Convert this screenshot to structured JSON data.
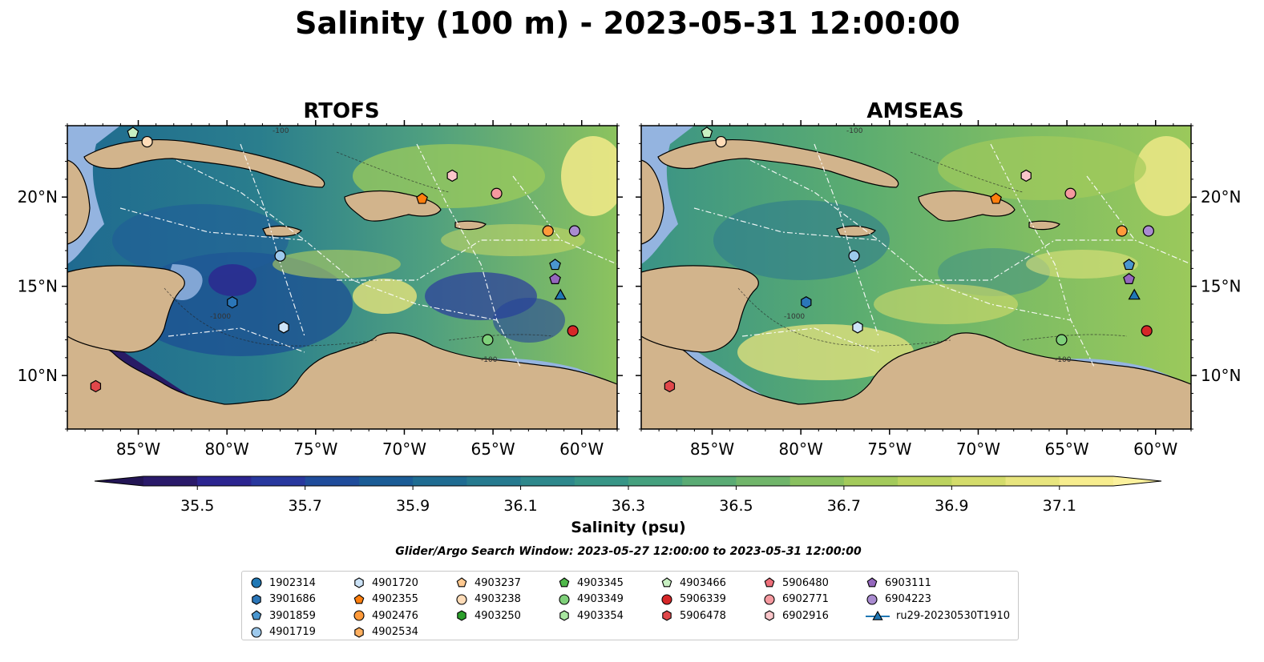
{
  "figure": {
    "title": "Salinity (100 m) - 2023-05-31 12:00:00",
    "subtitle": "Glider/Argo Search Window: 2023-05-27 12:00:00 to 2023-05-31 12:00:00"
  },
  "chart_data": [
    {
      "type": "heatmap",
      "title": "RTOFS",
      "x_ticks": [
        "85°W",
        "80°W",
        "75°W",
        "70°W",
        "65°W",
        "60°W"
      ],
      "x_tick_values": [
        -85,
        -80,
        -75,
        -70,
        -65,
        -60
      ],
      "y_ticks": [
        "10°N",
        "15°N",
        "20°N"
      ],
      "y_tick_values": [
        10,
        15,
        20
      ],
      "xlim": [
        -89,
        -58
      ],
      "ylim": [
        7,
        24
      ],
      "contour_labels": [
        "-100",
        "-1000"
      ],
      "tone": "fresher (more blue)",
      "markers": [
        {
          "id": "4903466",
          "lon": -85.3,
          "lat": 23.6
        },
        {
          "id": "4903238",
          "lon": -84.5,
          "lat": 23.1
        },
        {
          "id": "6902916",
          "lon": -67.3,
          "lat": 21.2
        },
        {
          "id": "6902771",
          "lon": -64.8,
          "lat": 20.2
        },
        {
          "id": "4902355",
          "lon": -69.0,
          "lat": 19.9
        },
        {
          "id": "4902476",
          "lon": -61.9,
          "lat": 18.1
        },
        {
          "id": "6904223",
          "lon": -60.4,
          "lat": 18.1
        },
        {
          "id": "4901719",
          "lon": -77.0,
          "lat": 16.7
        },
        {
          "id": "3901859",
          "lon": -61.5,
          "lat": 16.2
        },
        {
          "id": "6903111",
          "lon": -61.5,
          "lat": 15.4
        },
        {
          "id": "ru29-20230530T1910",
          "lon": -61.2,
          "lat": 14.5
        },
        {
          "id": "3901686",
          "lon": -79.7,
          "lat": 14.1
        },
        {
          "id": "4901720",
          "lon": -76.8,
          "lat": 12.7
        },
        {
          "id": "5906339",
          "lon": -60.5,
          "lat": 12.5
        },
        {
          "id": "4903349",
          "lon": -65.3,
          "lat": 12.0
        },
        {
          "id": "5906478",
          "lon": -87.4,
          "lat": 9.4
        }
      ]
    },
    {
      "type": "heatmap",
      "title": "AMSEAS",
      "x_ticks": [
        "85°W",
        "80°W",
        "75°W",
        "70°W",
        "65°W",
        "60°W"
      ],
      "x_tick_values": [
        -85,
        -80,
        -75,
        -70,
        -65,
        -60
      ],
      "y_ticks": [
        "10°N",
        "15°N",
        "20°N"
      ],
      "y_tick_values": [
        10,
        15,
        20
      ],
      "xlim": [
        -89,
        -58
      ],
      "ylim": [
        7,
        24
      ],
      "contour_labels": [
        "-100",
        "-1000"
      ],
      "tone": "saltier (more green/yellow)",
      "markers": "same as RTOFS"
    }
  ],
  "colorbar": {
    "label": "Salinity (psu)",
    "tick_labels": [
      "35.5",
      "35.7",
      "35.9",
      "36.1",
      "36.3",
      "36.5",
      "36.7",
      "36.9",
      "37.1"
    ],
    "min": 35.4,
    "max": 37.2,
    "step": 0.1,
    "colors": [
      "#2a1a6a",
      "#2c2590",
      "#28389e",
      "#1f4c9b",
      "#1b5c96",
      "#1f6c92",
      "#267a8f",
      "#2e888c",
      "#379586",
      "#45a07e",
      "#5aab74",
      "#70b56a",
      "#89c060",
      "#a3ca5b",
      "#bcd35f",
      "#d4dc6b",
      "#e8e57e",
      "#f7ed8e"
    ],
    "under_color": "#231555",
    "over_color": "#fbf19d"
  },
  "map_colors": {
    "land": "#d2b48c",
    "shallow_water": "#94b4e0",
    "river": "#8fa8c8"
  },
  "legend": {
    "columns": [
      [
        {
          "label": "1902314",
          "shape": "circle",
          "color": "#1f77b4"
        },
        {
          "label": "3901686",
          "shape": "hexagon",
          "color": "#2b76b8"
        },
        {
          "label": "3901859",
          "shape": "pentagon",
          "color": "#4a96cf"
        },
        {
          "label": "4901719",
          "shape": "circle",
          "color": "#9dc9ec"
        }
      ],
      [
        {
          "label": "4901720",
          "shape": "hexagon",
          "color": "#cce3f7"
        },
        {
          "label": "4902355",
          "shape": "pentagon",
          "color": "#ff7f0e"
        },
        {
          "label": "4902476",
          "shape": "circle",
          "color": "#ff9a3a"
        },
        {
          "label": "4902534",
          "shape": "hexagon",
          "color": "#ffb060"
        }
      ],
      [
        {
          "label": "4903237",
          "shape": "pentagon",
          "color": "#ffc990"
        },
        {
          "label": "4903238",
          "shape": "circle",
          "color": "#ffdcb8"
        },
        {
          "label": "4903250",
          "shape": "hexagon",
          "color": "#2ca02c"
        }
      ],
      [
        {
          "label": "4903345",
          "shape": "pentagon",
          "color": "#4fb84a"
        },
        {
          "label": "4903349",
          "shape": "circle",
          "color": "#7fd07a"
        },
        {
          "label": "4903354",
          "shape": "hexagon",
          "color": "#a8e6a0"
        }
      ],
      [
        {
          "label": "4903466",
          "shape": "pentagon",
          "color": "#c8f0c2"
        },
        {
          "label": "5906339",
          "shape": "circle",
          "color": "#d62728"
        },
        {
          "label": "5906478",
          "shape": "hexagon",
          "color": "#e0474a"
        }
      ],
      [
        {
          "label": "5906480",
          "shape": "pentagon",
          "color": "#ee6f7a"
        },
        {
          "label": "6902771",
          "shape": "circle",
          "color": "#f5999f"
        },
        {
          "label": "6902916",
          "shape": "hexagon",
          "color": "#fbc6ca"
        }
      ],
      [
        {
          "label": "6903111",
          "shape": "pentagon",
          "color": "#9467bd"
        },
        {
          "label": "6904223",
          "shape": "circle",
          "color": "#a98bd0"
        },
        {
          "label": "ru29-20230530T1910",
          "shape": "triangle-line",
          "color": "#1f77b4"
        }
      ]
    ]
  }
}
